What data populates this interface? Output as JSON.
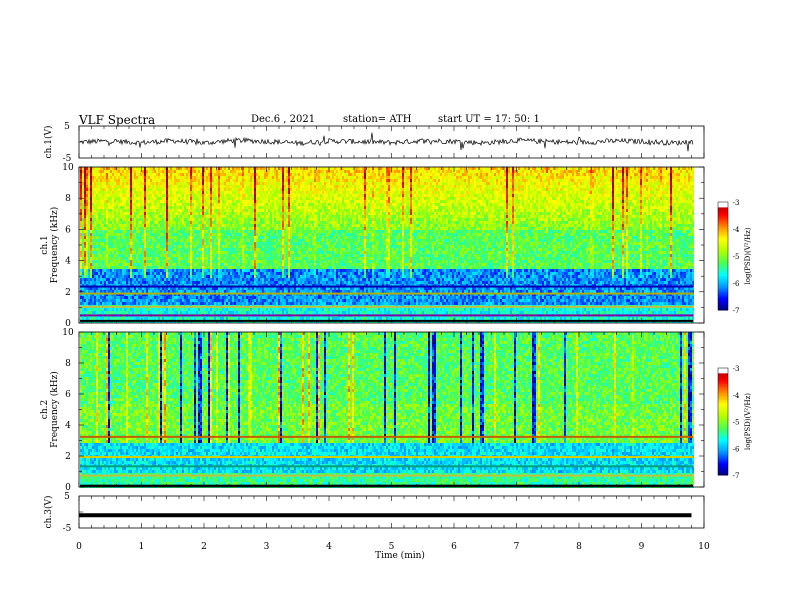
{
  "header": {
    "title": "VLF  Spectra",
    "date": "Dec.6   , 2021",
    "station": "station= ATH",
    "start": "start  UT  =    17: 50: 1"
  },
  "chart_data": [
    {
      "type": "line",
      "panel": "ch1-waveform",
      "ylabel": "ch.1(V)",
      "ylim": [
        -5,
        5
      ],
      "xlim": [
        0,
        10
      ],
      "x": [
        0,
        0.5,
        1,
        1.5,
        2,
        2.5,
        3,
        3.5,
        4,
        4.5,
        5,
        5.5,
        6,
        6.5,
        7,
        7.5,
        8,
        8.5,
        9,
        9.5,
        9.8
      ],
      "y": [
        0,
        0.3,
        -0.2,
        0.4,
        -0.3,
        0.5,
        0.2,
        -0.4,
        0.3,
        0.1,
        -0.2,
        0.4,
        0.2,
        -0.3,
        0.5,
        0.1,
        -0.2,
        0.3,
        0.2,
        -0.3,
        0
      ]
    },
    {
      "type": "heatmap",
      "panel": "ch1-spectrogram",
      "ylabel": "ch.1\nFrequency (kHz)",
      "ylim": [
        0,
        10
      ],
      "xlim": [
        0,
        10
      ],
      "yticks": [
        "0",
        "2",
        "4",
        "6",
        "8",
        "10"
      ],
      "colorbar": {
        "label": "log(PSD)(V²/Hz)",
        "ticks": [
          "-3",
          "-4",
          "-5",
          "-6",
          "-7"
        ],
        "range": [
          -7,
          -3
        ]
      }
    },
    {
      "type": "heatmap",
      "panel": "ch2-spectrogram",
      "ylabel": "ch.2\nFrequency (kHz)",
      "ylim": [
        0,
        10
      ],
      "xlim": [
        0,
        10
      ],
      "yticks": [
        "0",
        "2",
        "4",
        "6",
        "8",
        "10"
      ],
      "colorbar": {
        "label": "log(PSD)(V²/Hz)",
        "ticks": [
          "-3",
          "-4",
          "-5",
          "-6",
          "-7"
        ],
        "range": [
          -7,
          -3
        ]
      }
    },
    {
      "type": "line",
      "panel": "ch3-waveform",
      "ylabel": "ch.3(V)",
      "ylim": [
        -5,
        5
      ],
      "xlim": [
        0,
        10
      ],
      "x": [
        0,
        9.8
      ],
      "y": [
        -1,
        -1
      ]
    }
  ],
  "xaxis": {
    "label": "Time  (min)",
    "ticks": [
      "0",
      "1",
      "2",
      "3",
      "4",
      "5",
      "6",
      "7",
      "8",
      "9",
      "10"
    ]
  },
  "wave_yticks": [
    "5",
    "-5"
  ]
}
